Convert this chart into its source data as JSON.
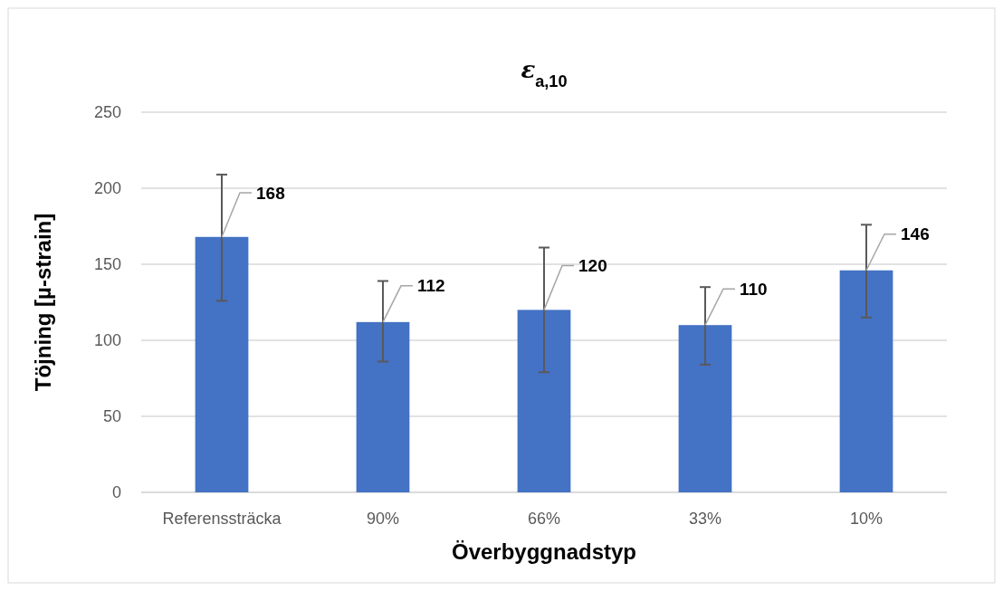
{
  "chart_data": {
    "type": "bar",
    "title": "ε$_{a,10}$",
    "xlabel": "Överbyggnadstyp",
    "ylabel": "Töjning [µ-strain]",
    "categories": [
      "Referenssträcka",
      "90%",
      "66%",
      "33%",
      "10%"
    ],
    "values": [
      168,
      112,
      120,
      110,
      146
    ],
    "errors": [
      [
        126,
        209
      ],
      [
        86,
        139
      ],
      [
        79,
        161
      ],
      [
        84,
        135
      ],
      [
        115,
        176
      ]
    ],
    "color": "#4472c4",
    "ylim": [
      0,
      250
    ],
    "yticks": [
      0,
      50,
      100,
      150,
      200,
      250
    ],
    "grid": "y",
    "data_labels": true
  }
}
